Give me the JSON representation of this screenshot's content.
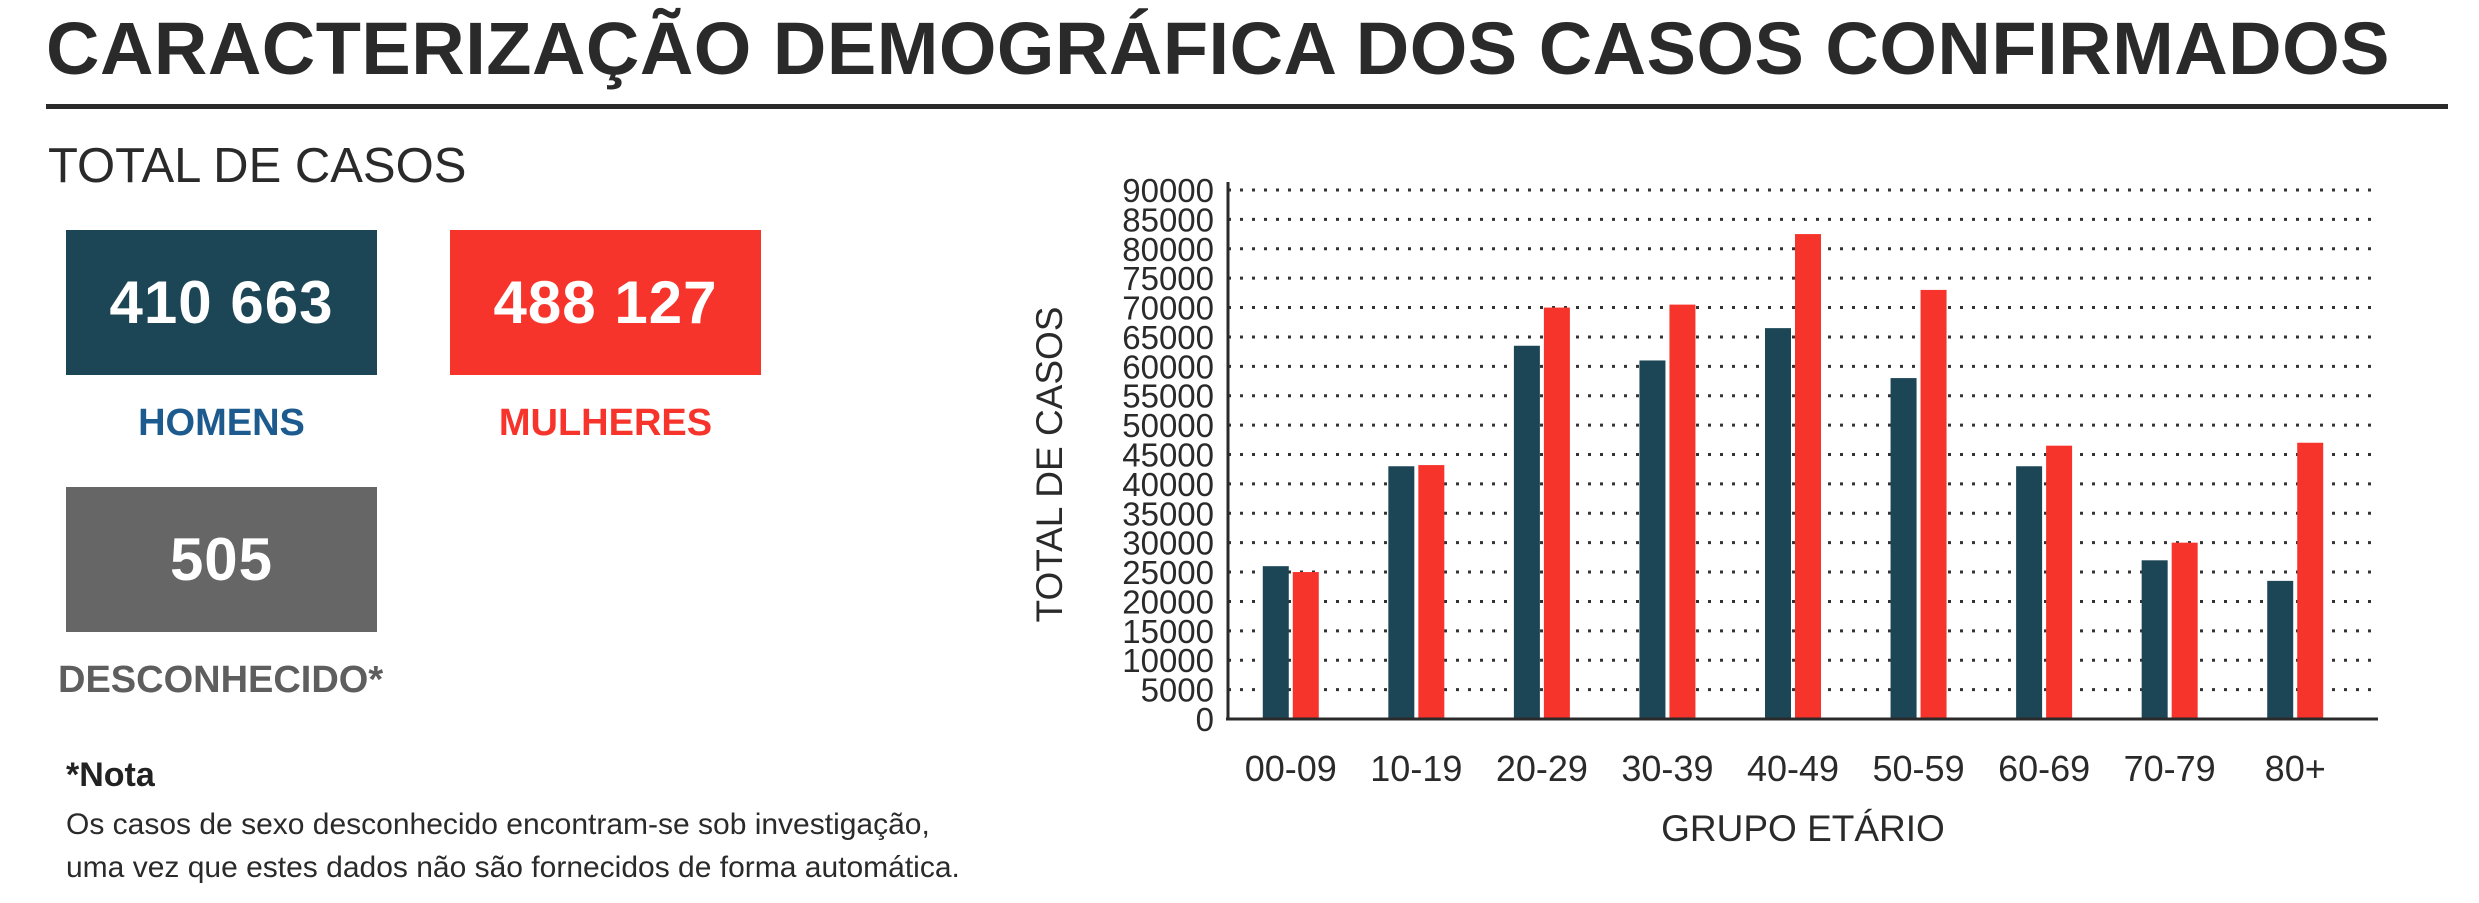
{
  "header": {
    "title": "CARACTERIZAÇÃO DEMOGRÁFICA DOS CASOS CONFIRMADOS"
  },
  "summary": {
    "heading": "TOTAL DE CASOS",
    "men": {
      "value": "410 663",
      "label": "HOMENS"
    },
    "women": {
      "value": "488 127",
      "label": "MULHERES"
    },
    "unknown": {
      "value": "505",
      "label": "DESCONHECIDO*"
    }
  },
  "note": {
    "title": "*Nota",
    "line1": "Os casos de sexo desconhecido encontram-se sob investigação,",
    "line2": "uma vez que estes dados não são fornecidos de forma automática."
  },
  "colors": {
    "men": "#1c4656",
    "women": "#f7342b",
    "unknown": "#666666",
    "men_label": "#1d5b8f",
    "women_label": "#f7342b",
    "unknown_label": "#5e5e5e"
  },
  "chart_data": {
    "type": "bar",
    "xlabel": "GRUPO ETÁRIO",
    "ylabel": "TOTAL DE CASOS",
    "categories": [
      "00-09",
      "10-19",
      "20-29",
      "30-39",
      "40-49",
      "50-59",
      "60-69",
      "70-79",
      "80+"
    ],
    "series": [
      {
        "values": [
          26000,
          43000,
          63500,
          61000,
          66500,
          58000,
          43000,
          27000,
          23500
        ]
      },
      {
        "values": [
          25000,
          43200,
          70000,
          70500,
          82500,
          73000,
          46500,
          30000,
          47000
        ]
      }
    ],
    "ylim": [
      0,
      90000
    ],
    "yticks": [
      0,
      5000,
      10000,
      15000,
      20000,
      25000,
      30000,
      35000,
      40000,
      45000,
      50000,
      55000,
      60000,
      65000,
      70000,
      75000,
      80000,
      85000,
      90000
    ],
    "grid": true,
    "grid_style": "dotted"
  }
}
